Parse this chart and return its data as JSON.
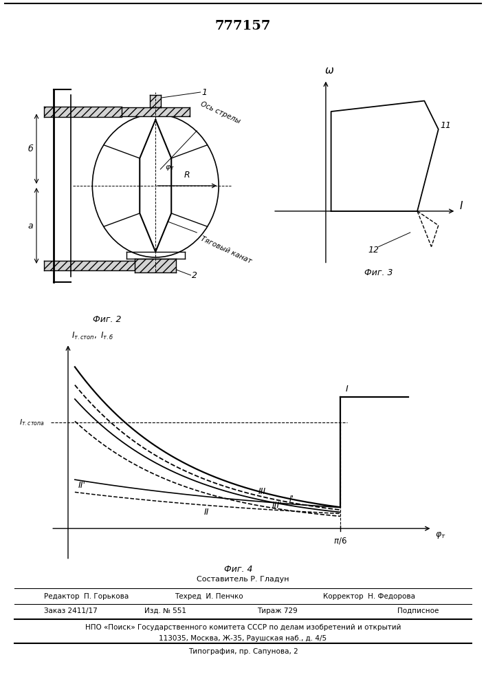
{
  "title": "777157",
  "fig2_caption": "Фиг. 2",
  "fig3_caption": "Фиг. 3",
  "fig4_caption": "Фиг. 4",
  "label1": "1",
  "label2": "2",
  "label_b": "б",
  "label_a": "а",
  "label_R": "R",
  "label_ось_стрелы": "Ось стрелы",
  "label_тяговый_канат": "Тяговый канат",
  "label_omega": "ω",
  "label_I_axis": "I",
  "label_11": "11",
  "label_12": "12",
  "fig4_curve_I": "I",
  "fig4_curve_II": "II",
  "fig4_curve_III": "III",
  "fig4_curve_I_prime": "I'",
  "fig4_curve_II_prime": "II'",
  "fig4_curve_III_prime": "III'",
  "footer_line1": "Составитель Р. Гладун",
  "footer_editor": "Редактор  П. Горькова",
  "footer_tech": "Техред  И. Пенчко",
  "footer_corrector": "Корректор  Н. Федорова",
  "footer_order": "Заказ 2411/17",
  "footer_izd": "Изд. № 551",
  "footer_tirazh": "Тираж 729",
  "footer_podpisnoe": "Подписное",
  "footer_npo": "НПО «Поиск» Государственного комитета СССР по делам изобретений и открытий",
  "footer_address": "113035, Москва, Ж-35, Раушская наб., д. 4/5",
  "footer_typography": "Типография, пр. Сапунова, 2",
  "bg_color": "#ffffff",
  "line_color": "#000000"
}
